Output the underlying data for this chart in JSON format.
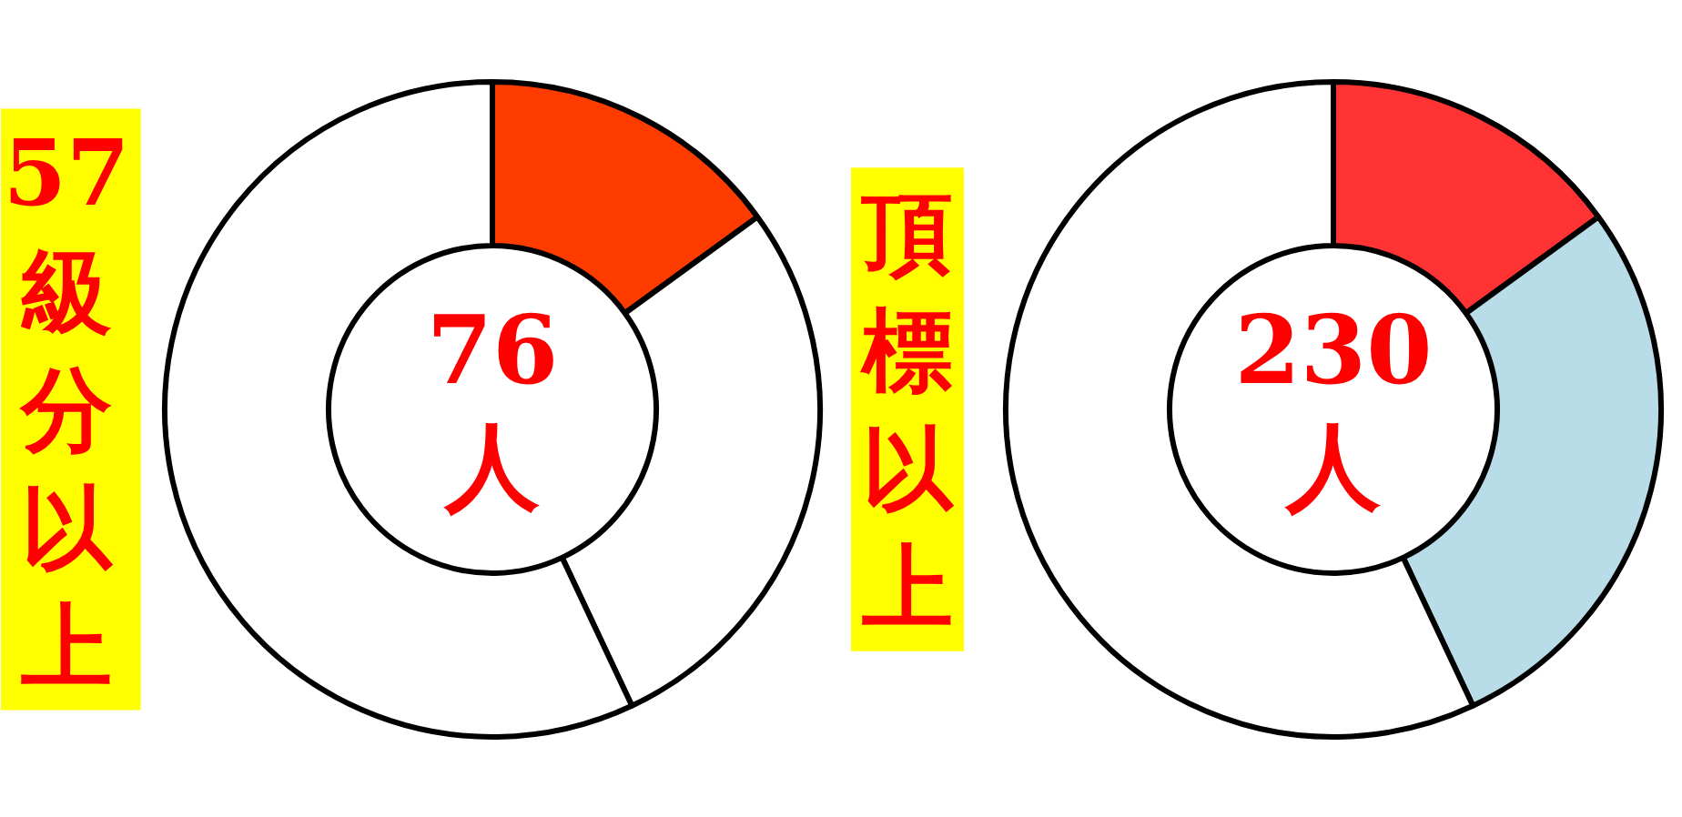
{
  "chart_data": [
    {
      "type": "donut",
      "title": "57級分以上",
      "annotations": [
        "76人"
      ],
      "categories": [
        null,
        null,
        null
      ],
      "values": [
        15,
        28,
        57
      ],
      "colors": [
        "#ff3c00",
        "#ffffff",
        "#ffffff"
      ]
    },
    {
      "type": "donut",
      "title": "頂標以上",
      "annotations": [
        "230人"
      ],
      "categories": [
        null,
        null,
        null
      ],
      "values": [
        15,
        28,
        57
      ],
      "colors": [
        "#ff3333",
        "#b8dde8",
        "#ffffff"
      ]
    }
  ]
}
